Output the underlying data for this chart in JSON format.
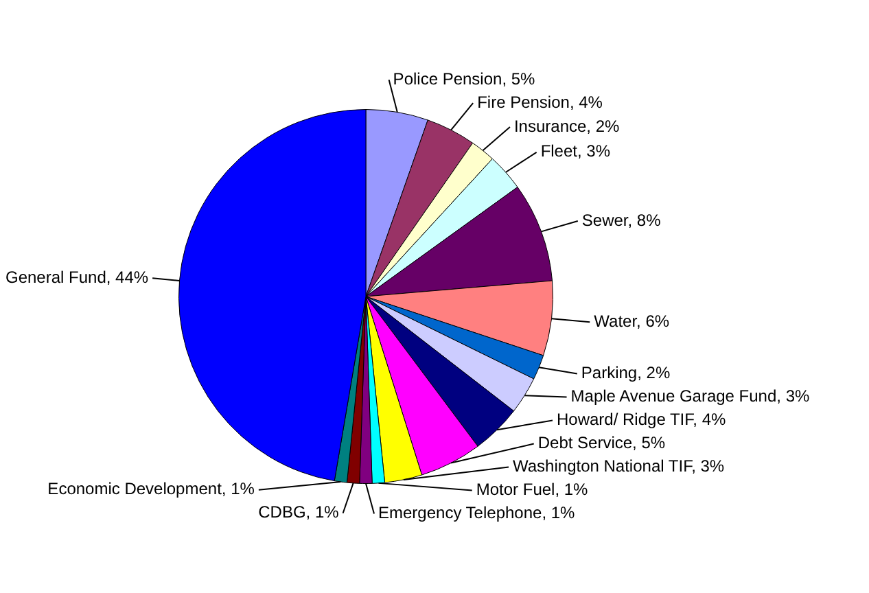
{
  "chart_data": {
    "type": "pie",
    "categories": [
      "Police Pension",
      "Fire Pension",
      "Insurance",
      "Fleet",
      "Sewer",
      "Water",
      "Parking",
      "Maple Avenue Garage Fund",
      "Howard/ Ridge TIF",
      "Debt Service",
      "Washington National TIF",
      "Motor Fuel",
      "Emergency Telephone",
      "CDBG",
      "Economic Development",
      "General Fund"
    ],
    "values": [
      5,
      4,
      2,
      3,
      8,
      6,
      2,
      3,
      4,
      5,
      3,
      1,
      1,
      1,
      1,
      44
    ],
    "colors": [
      "#9999ff",
      "#993366",
      "#ffffcc",
      "#ccffff",
      "#660066",
      "#ff8080",
      "#0066cc",
      "#ccccff",
      "#000080",
      "#ff00ff",
      "#ffff00",
      "#00ffff",
      "#800080",
      "#800000",
      "#008080",
      "#0000ff"
    ],
    "value_labels": [
      "5%",
      "4%",
      "2%",
      "3%",
      "8%",
      "6%",
      "2%",
      "3%",
      "4%",
      "5%",
      "3%",
      "1%",
      "1%",
      "1%",
      "1%",
      "44%"
    ],
    "legend": false
  }
}
